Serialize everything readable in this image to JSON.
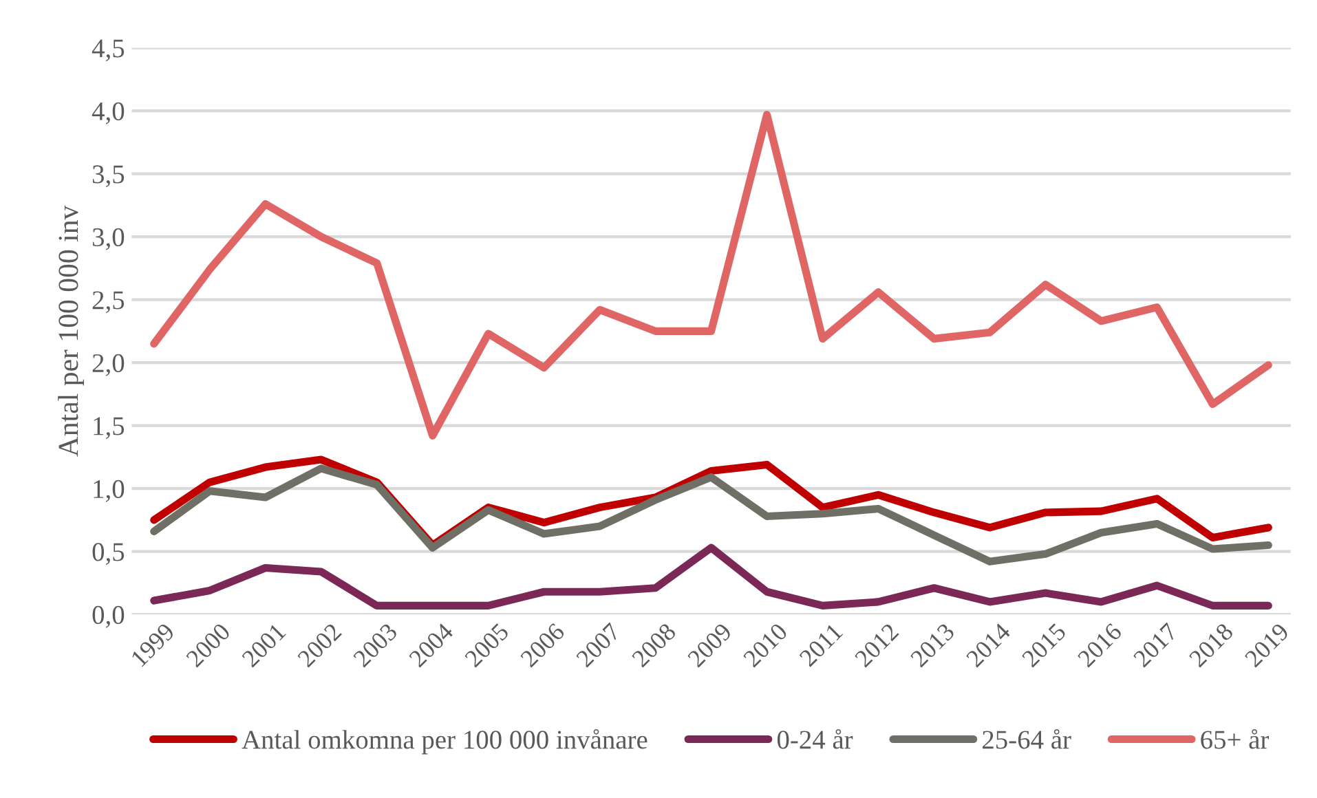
{
  "chart_data": {
    "type": "line",
    "ylabel": "Antal per 100 000 inv",
    "categories": [
      "1999",
      "2000",
      "2001",
      "2002",
      "2003",
      "2004",
      "2005",
      "2006",
      "2007",
      "2008",
      "2009",
      "2010",
      "2011",
      "2012",
      "2013",
      "2014",
      "2015",
      "2016",
      "2017",
      "2018",
      "2019"
    ],
    "series": [
      {
        "name": "Antal omkomna per 100 000 invånare",
        "color": "#c00000",
        "values": [
          0.75,
          1.05,
          1.17,
          1.23,
          1.05,
          0.55,
          0.85,
          0.73,
          0.85,
          0.93,
          1.14,
          1.19,
          0.85,
          0.95,
          0.81,
          0.69,
          0.81,
          0.82,
          0.92,
          0.61,
          0.69
        ]
      },
      {
        "name": "0-24 år",
        "color": "#7b2856",
        "values": [
          0.11,
          0.19,
          0.37,
          0.34,
          0.07,
          0.07,
          0.07,
          0.18,
          0.18,
          0.21,
          0.53,
          0.18,
          0.07,
          0.1,
          0.21,
          0.1,
          0.17,
          0.1,
          0.23,
          0.07,
          0.07
        ]
      },
      {
        "name": "25-64 år",
        "color": "#6f6f66",
        "values": [
          0.66,
          0.98,
          0.93,
          1.16,
          1.03,
          0.53,
          0.83,
          0.64,
          0.7,
          0.91,
          1.09,
          0.78,
          0.8,
          0.84,
          0.63,
          0.42,
          0.48,
          0.65,
          0.72,
          0.52,
          0.55
        ]
      },
      {
        "name": "65+ år",
        "color": "#e06666",
        "values": [
          2.15,
          2.74,
          3.26,
          3.0,
          2.79,
          1.42,
          2.23,
          1.96,
          2.42,
          2.25,
          2.25,
          3.97,
          2.19,
          2.56,
          2.19,
          2.24,
          2.62,
          2.33,
          2.44,
          1.67,
          1.98
        ]
      }
    ],
    "ylim": [
      0,
      4.5
    ],
    "yticks": [
      {
        "value": 0,
        "label": "0,0"
      },
      {
        "value": 0.5,
        "label": "0,5"
      },
      {
        "value": 1,
        "label": "1,0"
      },
      {
        "value": 1.5,
        "label": "1,5"
      },
      {
        "value": 2,
        "label": "2,0"
      },
      {
        "value": 2.5,
        "label": "2,5"
      },
      {
        "value": 3,
        "label": "3,0"
      },
      {
        "value": 3.5,
        "label": "3,5"
      },
      {
        "value": 4,
        "label": "4,0"
      },
      {
        "value": 4.5,
        "label": "4,5"
      }
    ],
    "grid": "y",
    "legend": "bottom",
    "marker": "none",
    "line_style": "solid"
  }
}
